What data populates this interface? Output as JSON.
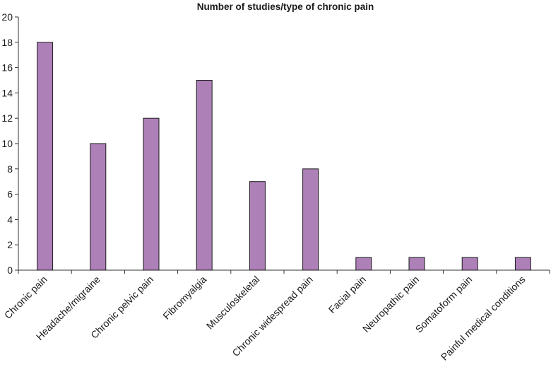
{
  "chart_data": {
    "type": "bar",
    "title": "Number of studies/type of chronic pain",
    "xlabel": "",
    "ylabel": "",
    "categories": [
      "Chronic pain",
      "Headache/migraine",
      "Chronic pelvic pain",
      "Fibromyalgia",
      "Musculoskeletal",
      "Chronic widespread pain",
      "Facial pain",
      "Neuropathic pain",
      "Somatoform pain",
      "Painful medical conditions"
    ],
    "values": [
      18,
      10,
      12,
      15,
      7,
      8,
      1,
      1,
      1,
      1
    ],
    "ylim": [
      0,
      20
    ],
    "yticks": [
      "0",
      "2",
      "4",
      "6",
      "8",
      "10",
      "12",
      "14",
      "16",
      "18",
      "20"
    ],
    "grid": false,
    "legend": "none",
    "colors": {
      "bar_fill": "#ad80b8",
      "bar_stroke": "#1a1a1a",
      "axis": "#333333",
      "text": "#1a1a1a"
    }
  }
}
